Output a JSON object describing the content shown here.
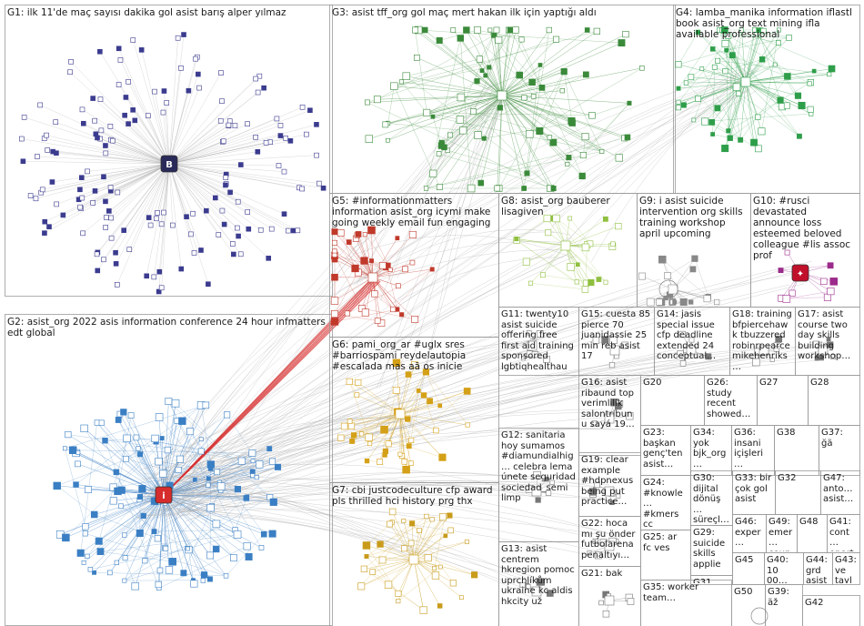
{
  "groups": [
    {
      "id": "G1",
      "label": "G1: ilk 11'de maç sayısı dakika gol asist barış alper yılmaz"
    },
    {
      "id": "G2",
      "label": "G2: asist_org 2022 asis information conference 24 hour infmatters edt global"
    },
    {
      "id": "G3",
      "label": "G3: asist tff_org gol maç mert hakan ilk için yaptığı aldı"
    },
    {
      "id": "G4",
      "label": "G4: lamba_manika information iflastl book asist_org text mining ifla available professional"
    },
    {
      "id": "G5",
      "label": "G5: #informationmatters information asist_org icymi make going weekly email fun engaging"
    },
    {
      "id": "G6",
      "label": "G6: pami_org_ar #uglx sres #barriospami reydelautopia #escalada mas aã os inicie"
    },
    {
      "id": "G7",
      "label": "G7: cbi justcodeculture cfp award pls thrilled hci history prg thx"
    },
    {
      "id": "G8",
      "label": "G8: asist_org bauberer lisagiven"
    },
    {
      "id": "G9",
      "label": "G9: i asist suicide intervention org skills training workshop april upcoming"
    },
    {
      "id": "G10",
      "label": "G10: #rusci devastated announce loss esteemed beloved colleague #lis assoc prof"
    },
    {
      "id": "G11",
      "label": "G11: twenty10 asist suicide offering free first aid training sponsored lgbtiqhealthau"
    },
    {
      "id": "G12",
      "label": "G12: sanitaria hoy sumamos #diamundialhig… celebra lema únete seguridad sociedad_semi limp"
    },
    {
      "id": "G13",
      "label": "G13: asist centrem hkregion pomoc uprchlíkům ukraine kc aldis hkcity už"
    },
    {
      "id": "G14",
      "label": "G14: jasis special issue cfp deadline extended 24 conceptual…"
    },
    {
      "id": "G15",
      "label": "G15: cuesta 85 pierce 70 juanidassie 25 min reb asist 17"
    },
    {
      "id": "G16",
      "label": "G16: asist ribaund top verimlilik salontribunu sayá 19…"
    },
    {
      "id": "G17",
      "label": "G17: asist course two day skills building workshop…"
    },
    {
      "id": "G18",
      "label": "G18: training bfpiercehawk tbuzzered robinrpearce mikehenriks…"
    },
    {
      "id": "G19",
      "label": "G19: clear example #hdpnexus being put practice…"
    },
    {
      "id": "G20",
      "label": "G20"
    },
    {
      "id": "G21",
      "label": "G21: bak"
    },
    {
      "id": "G22",
      "label": "G22: hoca mı şu önder futbolarena penaltıyı…"
    },
    {
      "id": "G23",
      "label": "G23: başkan genç'ten asist…"
    },
    {
      "id": "G24",
      "label": "G24: #knowle… #kmers cc"
    },
    {
      "id": "G25",
      "label": "G25: ar fc ves"
    },
    {
      "id": "G26",
      "label": "G26: study recent showed…"
    },
    {
      "id": "G27",
      "label": "G27"
    },
    {
      "id": "G28",
      "label": "G28"
    },
    {
      "id": "G29",
      "label": "G29: suicide skills applie…"
    },
    {
      "id": "G30",
      "label": "G30: dijital dönüş… süreçl…"
    },
    {
      "id": "G31",
      "label": "G31"
    },
    {
      "id": "G32",
      "label": "G32"
    },
    {
      "id": "G33",
      "label": "G33: bir çok gol asist"
    },
    {
      "id": "G34",
      "label": "G34: yok bjk_org…"
    },
    {
      "id": "G35",
      "label": "G35: worker team…"
    },
    {
      "id": "G36",
      "label": "G36: insani içişleri…"
    },
    {
      "id": "G37",
      "label": "G37: ğä"
    },
    {
      "id": "G38",
      "label": "G38"
    },
    {
      "id": "G39",
      "label": "G39: äž"
    },
    {
      "id": "G40",
      "label": "G40: 10 00…"
    },
    {
      "id": "G41",
      "label": "G41: cont… oport…"
    },
    {
      "id": "G42",
      "label": "G42"
    },
    {
      "id": "G43",
      "label": "G43: ve tayl…"
    },
    {
      "id": "G44",
      "label": "G44: grd asist…"
    },
    {
      "id": "G45",
      "label": "G45"
    },
    {
      "id": "G46",
      "label": "G46: exper…"
    },
    {
      "id": "G47",
      "label": "G47: anto… asist…"
    },
    {
      "id": "G48",
      "label": "G48"
    },
    {
      "id": "G49",
      "label": "G49: emer… coun…"
    },
    {
      "id": "G50",
      "label": "G50"
    }
  ],
  "colors": {
    "G1": "#3b3b8f",
    "G2": "#3a7fc4",
    "G3": "#3a8a3a",
    "G4": "#2e9e4a",
    "G5": "#c0392b",
    "G6": "#d4a017",
    "G7": "#c89b1a",
    "G8": "#8fbf3f",
    "G9": "#888888",
    "G10": "#9b2a8a",
    "edge": "#a8a8a8",
    "highlight": "#d62c2c",
    "border": "#9a9a9a"
  },
  "hub_icons": {
    "G1": "letter-b-avatar-icon",
    "G2": "asist-org-logo-icon",
    "G10": "university-logo-icon"
  }
}
